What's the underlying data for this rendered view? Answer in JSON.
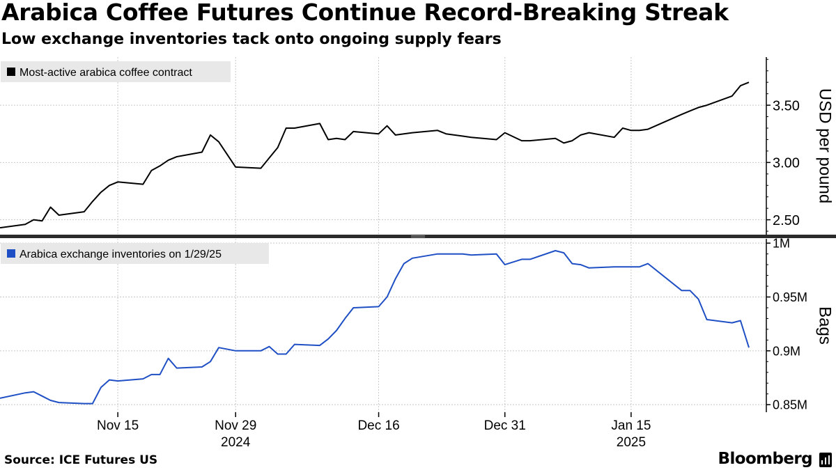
{
  "header": {
    "title": "Arabica Coffee Futures Continue Record-Breaking Streak",
    "subtitle": "Low exchange inventories tack onto ongoing supply fears"
  },
  "footer": {
    "source": "Source: ICE Futures US",
    "brand": "Bloomberg",
    "brand_icon": "bar-chart-icon"
  },
  "colors": {
    "price_line": "#000000",
    "inventory_line": "#1f4fc4",
    "grid": "#c8c8c8",
    "legend_bg": "#e8e8e8",
    "divider": "#2b2b2b"
  },
  "chart_data": [
    {
      "type": "line",
      "series": [
        {
          "name": "Most-active arabica coffee contract",
          "x": [
            "2024-11-01",
            "2024-11-04",
            "2024-11-05",
            "2024-11-06",
            "2024-11-07",
            "2024-11-08",
            "2024-11-11",
            "2024-11-12",
            "2024-11-13",
            "2024-11-14",
            "2024-11-15",
            "2024-11-18",
            "2024-11-19",
            "2024-11-20",
            "2024-11-21",
            "2024-11-22",
            "2024-11-25",
            "2024-11-26",
            "2024-11-27",
            "2024-11-29",
            "2024-12-02",
            "2024-12-03",
            "2024-12-04",
            "2024-12-05",
            "2024-12-06",
            "2024-12-09",
            "2024-12-10",
            "2024-12-11",
            "2024-12-12",
            "2024-12-13",
            "2024-12-16",
            "2024-12-17",
            "2024-12-18",
            "2024-12-19",
            "2024-12-20",
            "2024-12-23",
            "2024-12-24",
            "2024-12-26",
            "2024-12-27",
            "2024-12-30",
            "2024-12-31",
            "2025-01-02",
            "2025-01-03",
            "2025-01-06",
            "2025-01-07",
            "2025-01-08",
            "2025-01-09",
            "2025-01-10",
            "2025-01-13",
            "2025-01-14",
            "2025-01-15",
            "2025-01-16",
            "2025-01-17",
            "2025-01-21",
            "2025-01-22",
            "2025-01-23",
            "2025-01-24",
            "2025-01-27",
            "2025-01-28",
            "2025-01-29"
          ],
          "values": [
            2.43,
            2.46,
            2.5,
            2.49,
            2.61,
            2.54,
            2.57,
            2.66,
            2.74,
            2.8,
            2.83,
            2.81,
            2.93,
            2.97,
            3.02,
            3.05,
            3.09,
            3.24,
            3.18,
            2.96,
            2.95,
            3.04,
            3.13,
            3.3,
            3.3,
            3.34,
            3.2,
            3.21,
            3.2,
            3.27,
            3.25,
            3.32,
            3.24,
            3.25,
            3.26,
            3.28,
            3.25,
            3.23,
            3.22,
            3.2,
            3.26,
            3.19,
            3.19,
            3.21,
            3.17,
            3.19,
            3.24,
            3.26,
            3.22,
            3.3,
            3.28,
            3.28,
            3.29,
            3.42,
            3.45,
            3.48,
            3.5,
            3.58,
            3.67,
            3.7
          ]
        }
      ],
      "ylabel": "USD per pound",
      "yticks": [
        2.5,
        3.0,
        3.5
      ],
      "ytick_labels": [
        "2.50",
        "3.00",
        "3.50"
      ],
      "ylim": [
        2.37,
        3.92
      ],
      "grid": true,
      "legend": "top-left"
    },
    {
      "type": "line",
      "series": [
        {
          "name": "Arabica exchange inventories on 1/29/25",
          "x": [
            "2024-11-01",
            "2024-11-04",
            "2024-11-05",
            "2024-11-06",
            "2024-11-07",
            "2024-11-08",
            "2024-11-11",
            "2024-11-12",
            "2024-11-13",
            "2024-11-14",
            "2024-11-15",
            "2024-11-18",
            "2024-11-19",
            "2024-11-20",
            "2024-11-21",
            "2024-11-22",
            "2024-11-25",
            "2024-11-26",
            "2024-11-27",
            "2024-11-29",
            "2024-12-02",
            "2024-12-03",
            "2024-12-04",
            "2024-12-05",
            "2024-12-06",
            "2024-12-09",
            "2024-12-10",
            "2024-12-11",
            "2024-12-12",
            "2024-12-13",
            "2024-12-16",
            "2024-12-17",
            "2024-12-18",
            "2024-12-19",
            "2024-12-20",
            "2024-12-23",
            "2024-12-24",
            "2024-12-26",
            "2024-12-27",
            "2024-12-30",
            "2024-12-31",
            "2025-01-02",
            "2025-01-03",
            "2025-01-06",
            "2025-01-07",
            "2025-01-08",
            "2025-01-09",
            "2025-01-10",
            "2025-01-13",
            "2025-01-14",
            "2025-01-15",
            "2025-01-16",
            "2025-01-17",
            "2025-01-21",
            "2025-01-22",
            "2025-01-23",
            "2025-01-24",
            "2025-01-27",
            "2025-01-28",
            "2025-01-29"
          ],
          "values": [
            856000,
            861000,
            862000,
            858000,
            854000,
            852000,
            851000,
            851000,
            866000,
            873000,
            872000,
            874000,
            878000,
            878000,
            893000,
            884000,
            885000,
            890000,
            903000,
            900000,
            900000,
            904000,
            897000,
            897000,
            906000,
            905000,
            911000,
            919000,
            930000,
            940000,
            941000,
            950000,
            967000,
            981000,
            986000,
            990000,
            990000,
            990000,
            989000,
            990000,
            980000,
            985000,
            985000,
            993000,
            991000,
            981000,
            980000,
            977000,
            978000,
            978000,
            978000,
            978000,
            981000,
            956000,
            956000,
            948000,
            929000,
            926000,
            928000,
            903000
          ]
        }
      ],
      "ylabel": "Bags",
      "yticks": [
        850000,
        900000,
        950000,
        1000000
      ],
      "ytick_labels": [
        "0.85M",
        "0.9M",
        "0.95M",
        "1M"
      ],
      "ylim": [
        843000,
        1004000
      ],
      "grid": true,
      "legend": "top-left",
      "x_axis": {
        "ticks": [
          "2024-11-15",
          "2024-11-29",
          "2024-12-16",
          "2024-12-31",
          "2025-01-15"
        ],
        "tick_labels": [
          "Nov 15",
          "Nov 29",
          "Dec 16",
          "Dec 31",
          "Jan 15"
        ],
        "year_labels": [
          {
            "at": "2024-11-29",
            "label": "2024"
          },
          {
            "at": "2025-01-15",
            "label": "2025"
          }
        ]
      }
    }
  ]
}
